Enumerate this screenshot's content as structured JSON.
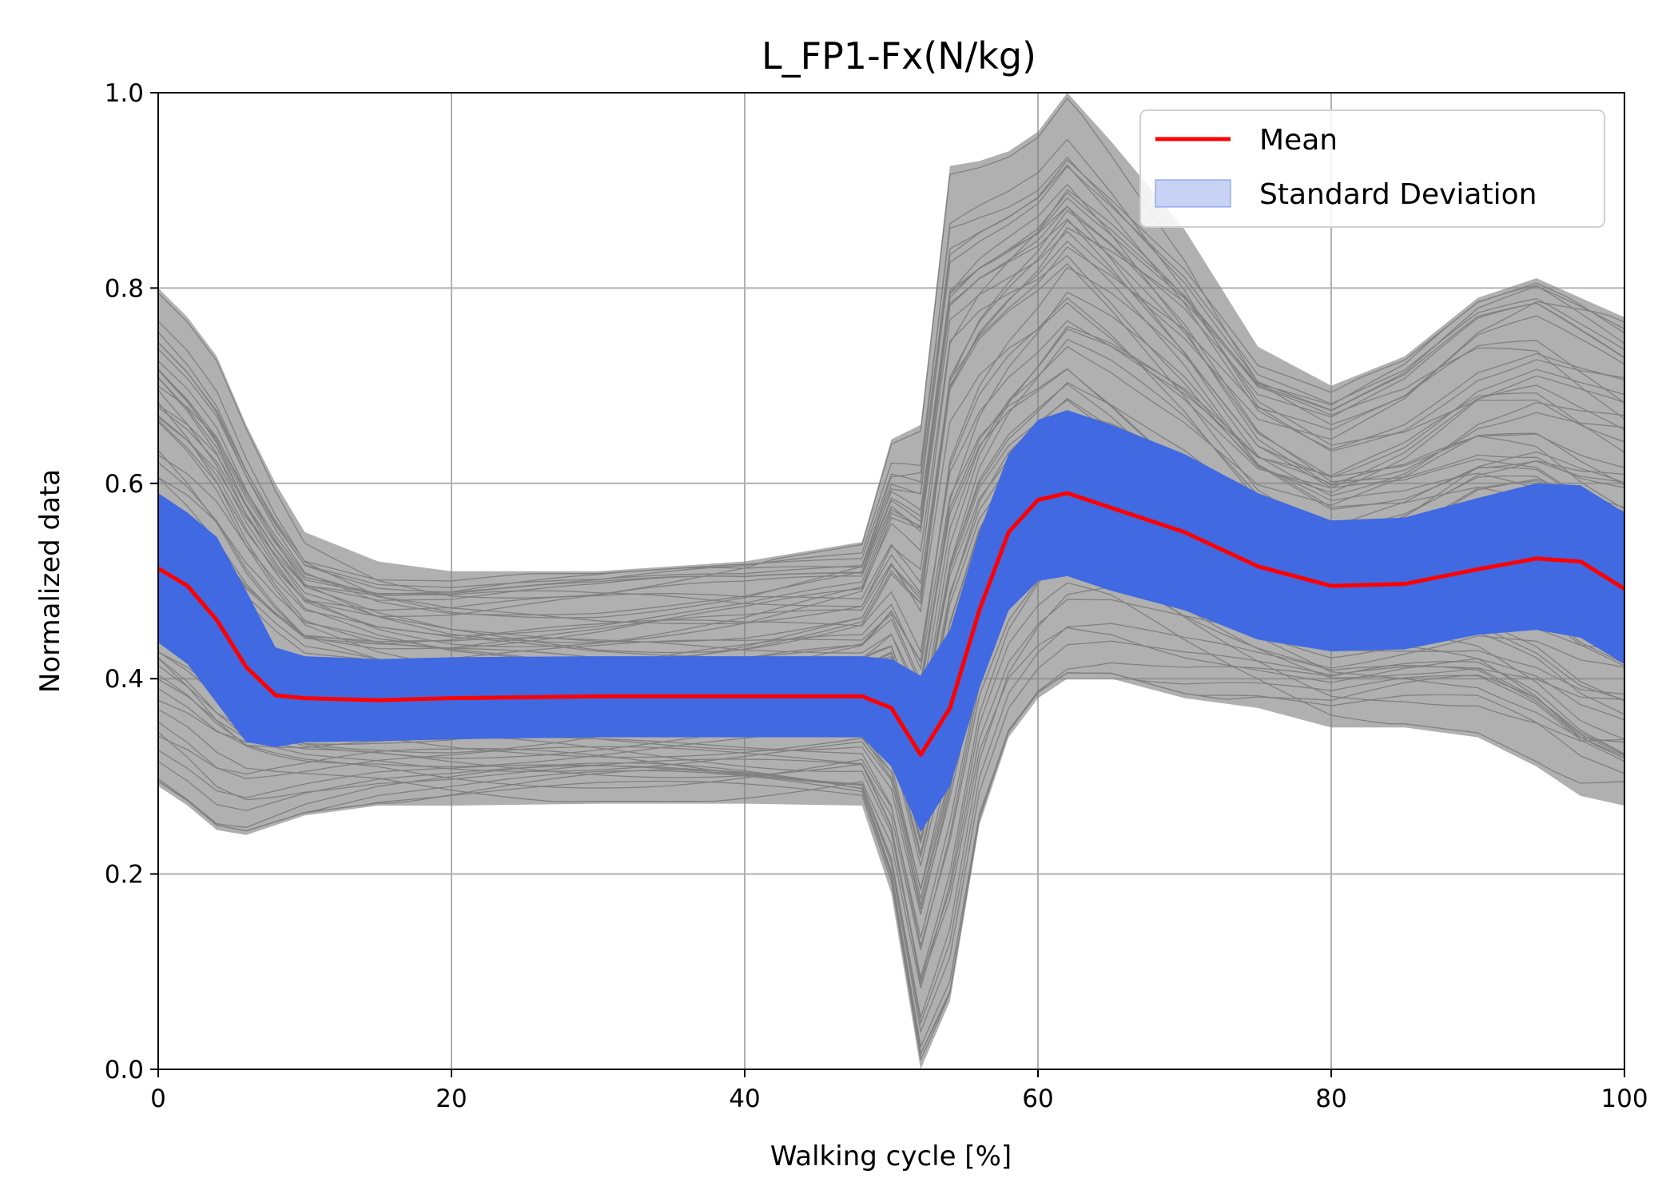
{
  "chart_data": {
    "type": "line",
    "title": "L_FP1-Fx(N/kg)",
    "xlabel": "Walking cycle [%]",
    "ylabel": "Normalized data",
    "xlim": [
      0,
      100
    ],
    "ylim": [
      0.0,
      1.0
    ],
    "xticks": [
      "0",
      "20",
      "40",
      "60",
      "80",
      "100"
    ],
    "yticks": [
      "0.0",
      "0.2",
      "0.4",
      "0.6",
      "0.8",
      "1.0"
    ],
    "grid": true,
    "legend_position": "top-right",
    "legend": [
      "Mean",
      "Standard Deviation"
    ],
    "colors": {
      "mean": "#ff0000",
      "std_band": "#4169e1",
      "std_legend": "#c7d2f5",
      "trials": "#808080",
      "grid": "#b0b0b0"
    },
    "x": [
      0,
      2,
      4,
      6,
      8,
      10,
      15,
      20,
      30,
      40,
      48,
      50,
      52,
      54,
      56,
      58,
      60,
      62,
      65,
      70,
      75,
      80,
      85,
      90,
      94,
      97,
      100
    ],
    "series": [
      {
        "name": "Mean",
        "values": [
          0.513,
          0.495,
          0.46,
          0.412,
          0.383,
          0.38,
          0.378,
          0.38,
          0.382,
          0.382,
          0.382,
          0.37,
          0.322,
          0.37,
          0.47,
          0.55,
          0.583,
          0.59,
          0.575,
          0.55,
          0.515,
          0.495,
          0.497,
          0.512,
          0.523,
          0.52,
          0.492
        ]
      },
      {
        "name": "Standard Deviation",
        "lower": [
          0.437,
          0.415,
          0.375,
          0.335,
          0.33,
          0.335,
          0.336,
          0.338,
          0.34,
          0.34,
          0.34,
          0.31,
          0.243,
          0.29,
          0.39,
          0.47,
          0.5,
          0.505,
          0.49,
          0.47,
          0.44,
          0.428,
          0.43,
          0.445,
          0.45,
          0.442,
          0.415
        ],
        "upper": [
          0.59,
          0.57,
          0.545,
          0.49,
          0.432,
          0.423,
          0.42,
          0.422,
          0.423,
          0.423,
          0.423,
          0.42,
          0.403,
          0.45,
          0.55,
          0.63,
          0.665,
          0.675,
          0.66,
          0.63,
          0.59,
          0.562,
          0.565,
          0.585,
          0.6,
          0.598,
          0.57
        ]
      },
      {
        "name": "trials_lower",
        "values": [
          0.29,
          0.27,
          0.245,
          0.24,
          0.25,
          0.26,
          0.27,
          0.27,
          0.272,
          0.272,
          0.27,
          0.18,
          0.0,
          0.07,
          0.25,
          0.34,
          0.38,
          0.4,
          0.4,
          0.38,
          0.37,
          0.35,
          0.35,
          0.34,
          0.31,
          0.28,
          0.27
        ]
      },
      {
        "name": "trials_upper",
        "values": [
          0.8,
          0.77,
          0.73,
          0.66,
          0.6,
          0.55,
          0.52,
          0.51,
          0.51,
          0.52,
          0.54,
          0.645,
          0.66,
          0.925,
          0.93,
          0.94,
          0.96,
          1.0,
          0.95,
          0.86,
          0.74,
          0.7,
          0.73,
          0.79,
          0.81,
          0.79,
          0.77
        ]
      }
    ]
  }
}
